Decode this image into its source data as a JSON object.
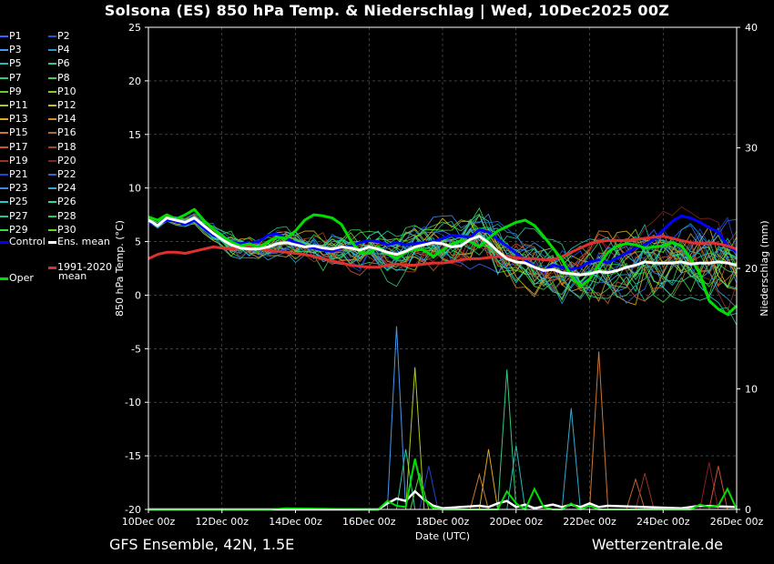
{
  "title": "Solsona  (ES)  850 hPa Temp. & Niederschlag | Wed, 10Dec2025 00Z",
  "footer": {
    "left": "GFS Ensemble, 42N, 1.5E",
    "right": "Wetterzentrale.de"
  },
  "colors": {
    "background": "#000000",
    "control": "#0000ff",
    "ens_mean": "#ffffff",
    "climate": "#e03030",
    "oper": "#00dd00",
    "grid": "#666666"
  },
  "legend": {
    "members": [
      "P1",
      "P2",
      "P3",
      "P4",
      "P5",
      "P6",
      "P7",
      "P8",
      "P9",
      "P10",
      "P11",
      "P12",
      "P13",
      "P14",
      "P15",
      "P16",
      "P17",
      "P18",
      "P19",
      "P20",
      "P21",
      "P22",
      "P23",
      "P24",
      "P25",
      "P26",
      "P27",
      "P28",
      "P29",
      "P30"
    ],
    "member_colors": [
      "#3366ff",
      "#2255dd",
      "#4499ee",
      "#2299cc",
      "#22bbbb",
      "#22cc99",
      "#33cc77",
      "#44cc55",
      "#66cc33",
      "#88cc22",
      "#aacc22",
      "#ccbb22",
      "#ddaa22",
      "#dd8822",
      "#cc7733",
      "#bb6633",
      "#cc5533",
      "#aa4422",
      "#993322",
      "#882222",
      "#2244cc",
      "#3366cc",
      "#4488dd",
      "#33aacc",
      "#22cccc",
      "#22ddaa",
      "#22cc88",
      "#22cc66",
      "#33dd44",
      "#55dd22"
    ],
    "control": "Control",
    "ens_mean": "Ens. mean",
    "climate_line1": "1991-2020",
    "climate_line2": "mean",
    "oper": "Oper"
  },
  "chart_data": {
    "type": "line",
    "xlabel": "Date (UTC)",
    "ylabel": "850 hPa Temp. (°C)",
    "y2label": "Niederschlag (mm)",
    "xlim": [
      0,
      384
    ],
    "ylim": [
      -20,
      25
    ],
    "y2lim": [
      0,
      40
    ],
    "x_ticks": [
      0,
      48,
      96,
      144,
      192,
      240,
      288,
      336,
      384
    ],
    "x_tick_labels": [
      "10Dec 00z",
      "12Dec 00z",
      "14Dec 00z",
      "16Dec 00z",
      "18Dec 00z",
      "20Dec 00z",
      "22Dec 00z",
      "24Dec 00z",
      "26Dec 00z"
    ],
    "y_ticks": [
      -20,
      -15,
      -10,
      -5,
      0,
      5,
      10,
      15,
      20,
      25
    ],
    "y2_ticks": [
      0,
      10,
      20,
      30,
      40
    ],
    "x_hours": [
      0,
      6,
      12,
      18,
      24,
      30,
      36,
      42,
      48,
      54,
      60,
      66,
      72,
      78,
      84,
      90,
      96,
      102,
      108,
      114,
      120,
      126,
      132,
      138,
      144,
      150,
      156,
      162,
      168,
      174,
      180,
      186,
      192,
      198,
      204,
      210,
      216,
      222,
      228,
      234,
      240,
      246,
      252,
      258,
      264,
      270,
      276,
      282,
      288,
      294,
      300,
      306,
      312,
      318,
      324,
      330,
      336,
      342,
      348,
      354,
      360,
      366,
      372,
      378,
      384
    ],
    "series": [
      {
        "name": "Ens. mean",
        "values": [
          7.0,
          6.5,
          7.2,
          7.0,
          6.8,
          7.2,
          6.5,
          5.8,
          5.2,
          4.7,
          4.4,
          4.3,
          4.3,
          4.5,
          4.8,
          4.9,
          4.7,
          4.5,
          4.6,
          4.4,
          4.3,
          4.5,
          4.4,
          4.2,
          4.5,
          4.3,
          4.0,
          3.8,
          4.1,
          4.5,
          4.7,
          4.9,
          4.8,
          4.5,
          4.6,
          5.2,
          5.5,
          4.9,
          4.1,
          3.4,
          3.1,
          3.0,
          2.6,
          2.3,
          2.4,
          2.1,
          2.0,
          1.9,
          2.0,
          2.2,
          2.1,
          2.3,
          2.6,
          2.8,
          3.1,
          3.0,
          3.0,
          3.0,
          3.1,
          2.9,
          3.0,
          3.0,
          3.1,
          3.0,
          2.8
        ]
      },
      {
        "name": "Oper",
        "values": [
          7.3,
          7.0,
          7.5,
          7.1,
          7.5,
          8.0,
          7.0,
          6.2,
          5.5,
          5.0,
          4.6,
          4.8,
          4.4,
          5.0,
          5.4,
          5.3,
          6.0,
          7.0,
          7.5,
          7.4,
          7.2,
          6.6,
          5.1,
          4.0,
          3.9,
          4.5,
          3.9,
          3.4,
          4.0,
          4.3,
          4.2,
          3.6,
          4.2,
          4.8,
          5.1,
          5.0,
          4.5,
          5.3,
          6.0,
          6.4,
          6.8,
          7.0,
          6.5,
          5.5,
          4.4,
          3.3,
          1.8,
          0.8,
          1.5,
          2.8,
          4.0,
          4.6,
          4.8,
          4.7,
          4.4,
          4.5,
          4.6,
          4.9,
          4.6,
          3.4,
          2.0,
          -0.5,
          -1.3,
          -1.8,
          -1.0
        ]
      },
      {
        "name": "Control",
        "values": [
          6.8,
          6.6,
          7.0,
          6.9,
          6.6,
          7.0,
          6.3,
          5.6,
          5.3,
          5.0,
          4.8,
          4.9,
          5.0,
          5.6,
          5.7,
          5.3,
          4.9,
          4.6,
          4.4,
          4.2,
          4.1,
          4.4,
          4.6,
          4.9,
          5.1,
          5.0,
          4.7,
          4.9,
          4.7,
          4.8,
          4.9,
          5.0,
          5.3,
          5.6,
          5.5,
          5.4,
          6.1,
          5.9,
          5.2,
          4.6,
          3.9,
          3.3,
          2.6,
          2.2,
          2.8,
          2.6,
          2.4,
          2.6,
          3.1,
          3.3,
          3.0,
          3.5,
          3.9,
          4.4,
          4.7,
          5.2,
          6.1,
          6.9,
          7.4,
          7.2,
          6.8,
          6.3,
          5.9,
          4.6,
          4.0
        ]
      },
      {
        "name": "1991-2020 mean",
        "values": [
          3.4,
          3.8,
          4.0,
          4.0,
          3.9,
          4.1,
          4.3,
          4.5,
          4.4,
          4.3,
          4.4,
          4.5,
          4.3,
          4.2,
          4.1,
          4.0,
          3.9,
          3.8,
          3.6,
          3.4,
          3.2,
          3.0,
          2.8,
          2.7,
          2.6,
          2.6,
          2.8,
          2.9,
          2.8,
          2.8,
          2.9,
          3.0,
          3.0,
          3.1,
          3.3,
          3.4,
          3.4,
          3.5,
          3.6,
          3.6,
          3.5,
          3.4,
          3.4,
          3.3,
          3.3,
          3.6,
          4.0,
          4.4,
          4.8,
          5.0,
          5.1,
          5.1,
          5.1,
          5.2,
          5.3,
          5.4,
          5.5,
          5.3,
          5.1,
          4.9,
          4.8,
          4.9,
          4.8,
          4.6,
          4.3
        ]
      }
    ],
    "precip_series": [
      {
        "name": "Ens. mean precip",
        "x_hours": [
          0,
          150,
          156,
          162,
          168,
          174,
          180,
          186,
          192,
          216,
          222,
          228,
          234,
          240,
          246,
          252,
          264,
          270,
          276,
          282,
          288,
          294,
          300,
          348,
          360,
          384
        ],
        "values": [
          0,
          0,
          0.5,
          0.9,
          0.7,
          1.5,
          0.8,
          0.3,
          0.1,
          0.3,
          0.2,
          0.5,
          0.7,
          0.2,
          0.4,
          0.1,
          0.4,
          0.2,
          0.4,
          0.2,
          0.5,
          0.2,
          0.3,
          0.1,
          0.3,
          0.2
        ]
      },
      {
        "name": "Oper precip",
        "x_hours": [
          0,
          80,
          90,
          150,
          156,
          162,
          168,
          174,
          180,
          186,
          192,
          228,
          234,
          240,
          246,
          252,
          258,
          264,
          270,
          276,
          282,
          288,
          294,
          300,
          354,
          360,
          366,
          372,
          378,
          384
        ],
        "values": [
          0,
          0,
          0.1,
          0,
          0.7,
          0.3,
          0.2,
          4.2,
          0.8,
          0.1,
          0,
          0,
          1.5,
          0.5,
          0,
          1.7,
          0.2,
          0,
          0,
          0.5,
          0,
          0.3,
          0,
          0,
          0,
          0.4,
          0.2,
          0.3,
          1.7,
          0
        ]
      }
    ],
    "member_spikes": [
      {
        "x": 162,
        "mm": 15.2,
        "member": 3
      },
      {
        "x": 168,
        "mm": 5.0,
        "member": 6
      },
      {
        "x": 174,
        "mm": 11.8,
        "member": 11
      },
      {
        "x": 177,
        "mm": 3.0,
        "member": 9
      },
      {
        "x": 183,
        "mm": 3.6,
        "member": 21
      },
      {
        "x": 216,
        "mm": 2.9,
        "member": 15
      },
      {
        "x": 222,
        "mm": 5.0,
        "member": 13
      },
      {
        "x": 234,
        "mm": 11.6,
        "member": 7
      },
      {
        "x": 240,
        "mm": 5.3,
        "member": 5
      },
      {
        "x": 276,
        "mm": 8.4,
        "member": 24
      },
      {
        "x": 294,
        "mm": 13.1,
        "member": 15
      },
      {
        "x": 318,
        "mm": 2.5,
        "member": 16
      },
      {
        "x": 324,
        "mm": 3.0,
        "member": 19
      },
      {
        "x": 366,
        "mm": 3.9,
        "member": 20
      },
      {
        "x": 372,
        "mm": 3.6,
        "member": 17
      }
    ]
  }
}
